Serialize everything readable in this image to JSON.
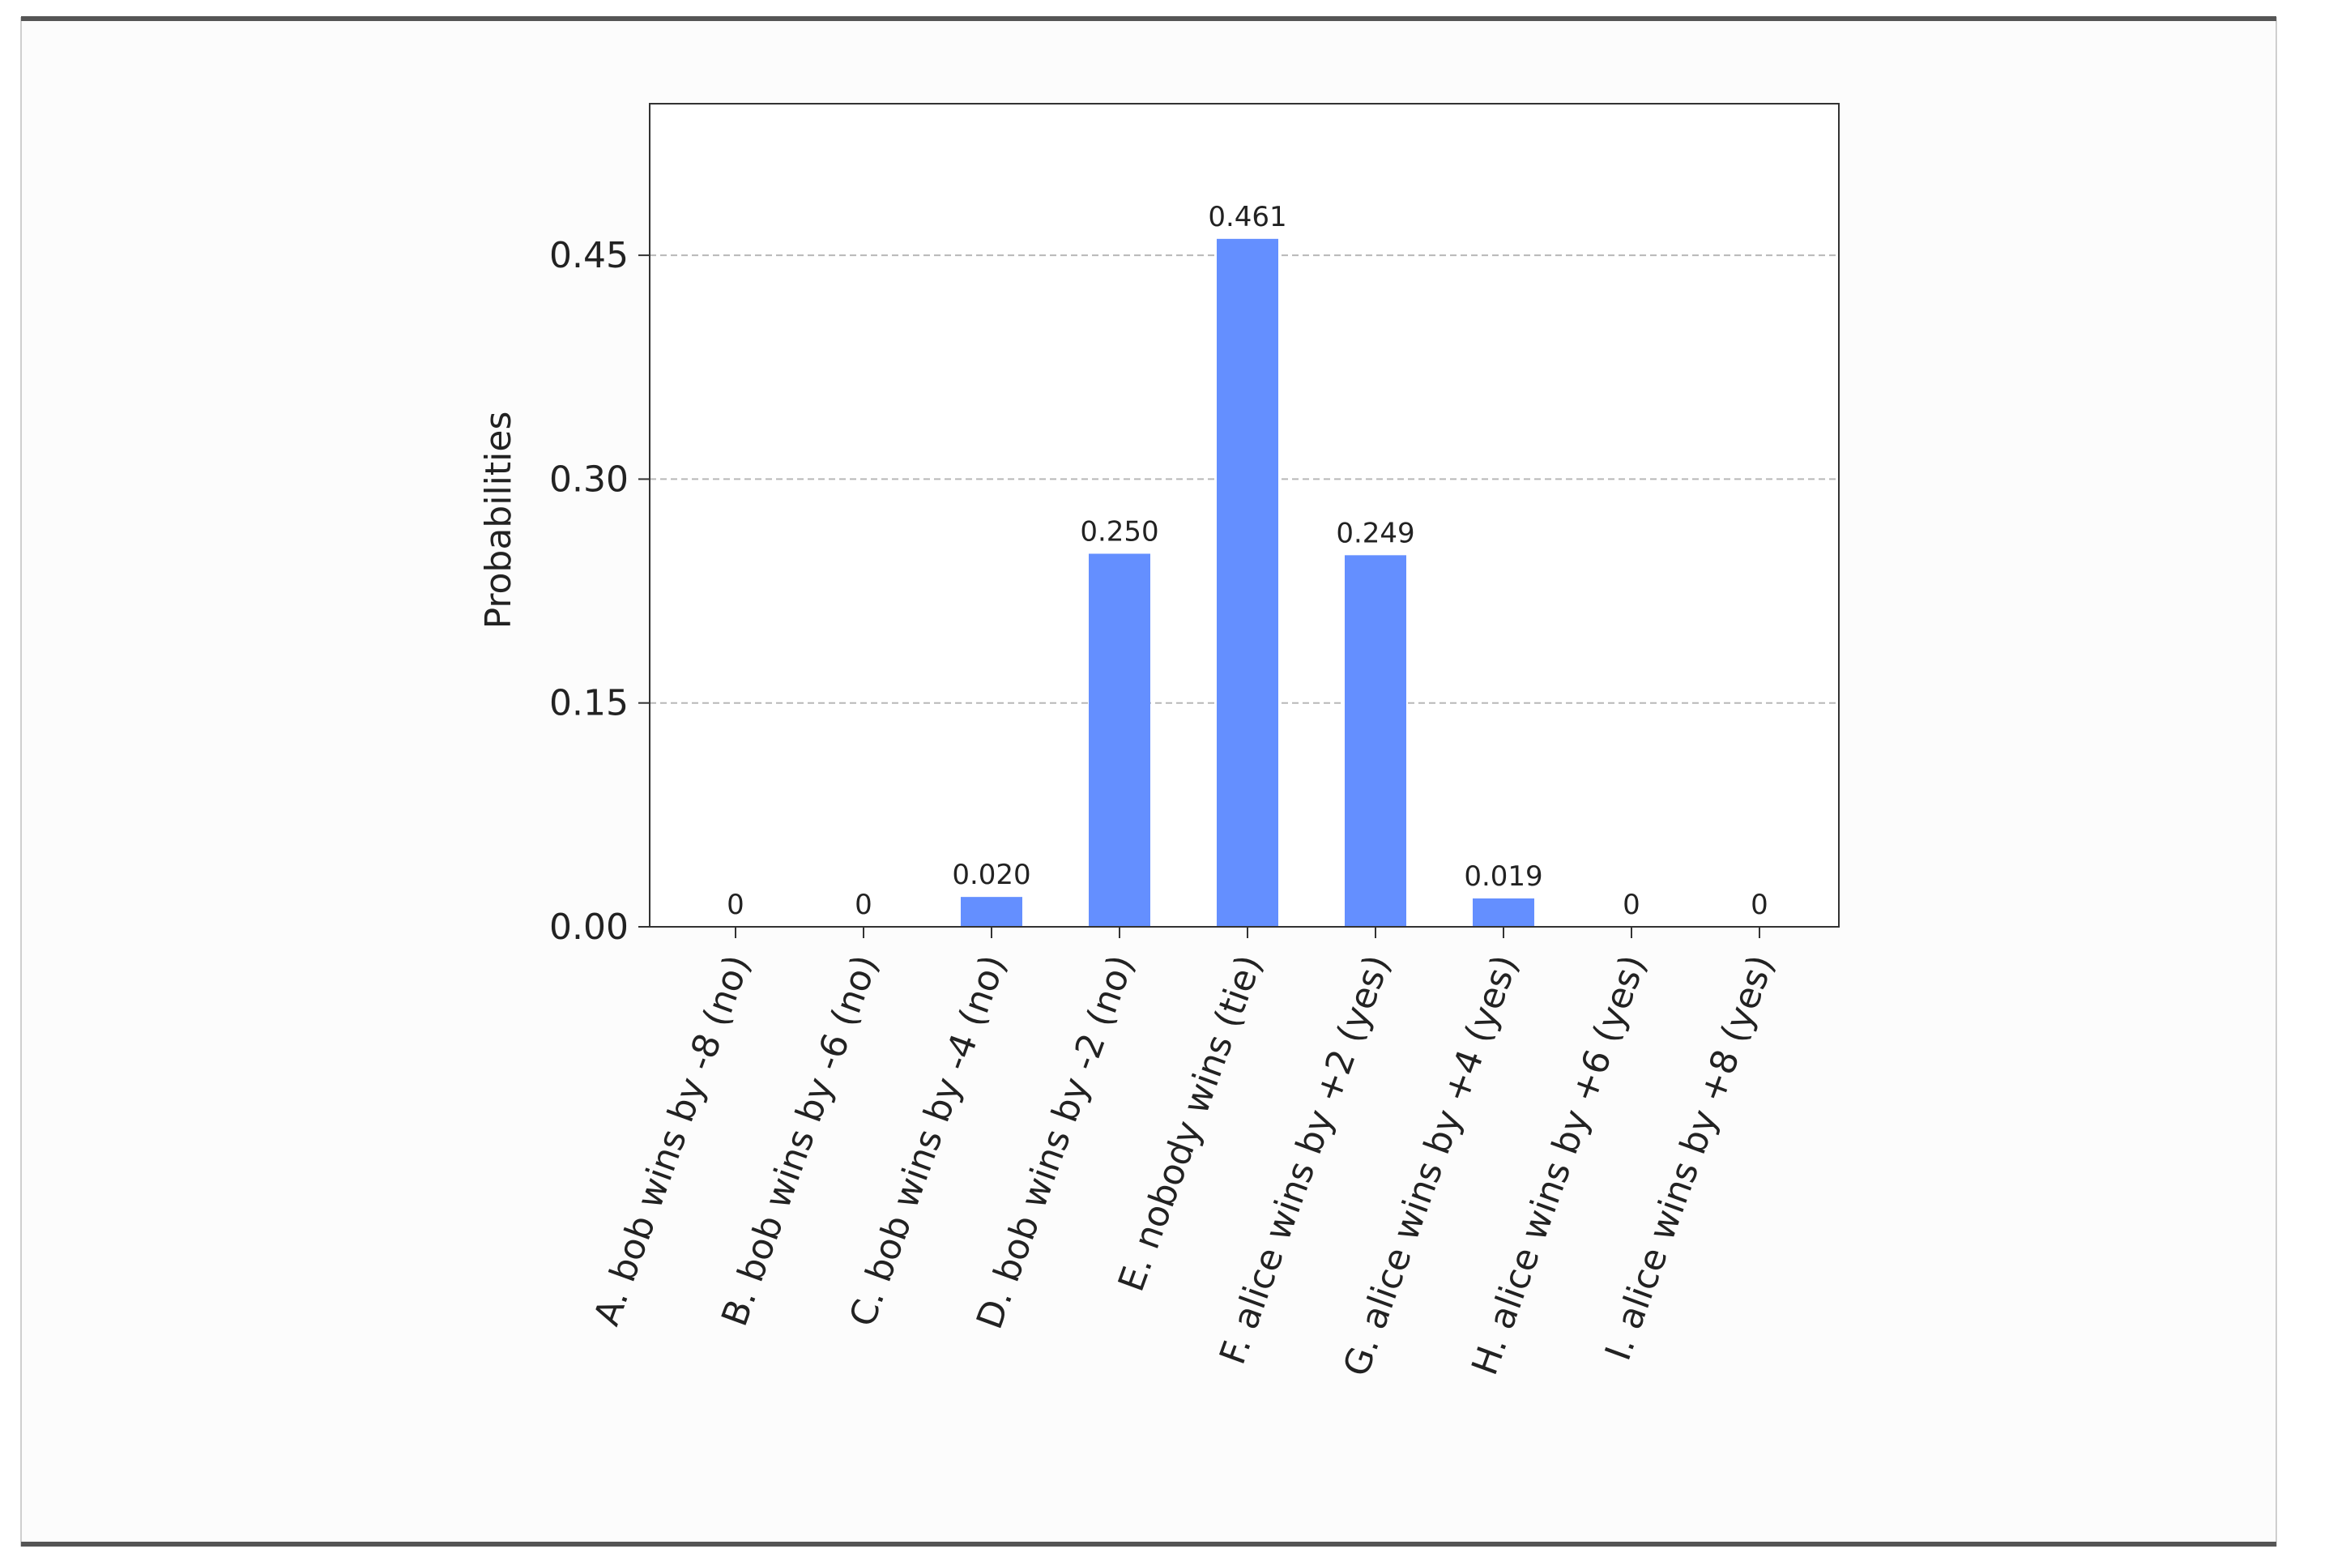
{
  "chart_data": {
    "type": "bar",
    "ylabel": "Probabilities",
    "xlabel": "",
    "ylim": [
      0,
      0.55
    ],
    "yticks": [
      0.0,
      0.15,
      0.3,
      0.45
    ],
    "ytick_labels": [
      "0.00",
      "0.15",
      "0.30",
      "0.45"
    ],
    "grid": "y-dashed",
    "bar_color": "#648fff",
    "categories": [
      "A. bob wins by -8 (no)",
      "B. bob wins by -6 (no)",
      "C. bob wins by -4 (no)",
      "D. bob wins by -2 (no)",
      "E. nobody wins (tie)",
      "F. alice wins by +2 (yes)",
      "G. alice wins by +4 (yes)",
      "H. alice wins by +6 (yes)",
      "I. alice wins by +8 (yes)"
    ],
    "values": [
      0,
      0,
      0.02,
      0.25,
      0.461,
      0.249,
      0.019,
      0,
      0
    ],
    "value_labels": [
      "0",
      "0",
      "0.020",
      "0.250",
      "0.461",
      "0.249",
      "0.019",
      "0",
      "0"
    ]
  }
}
